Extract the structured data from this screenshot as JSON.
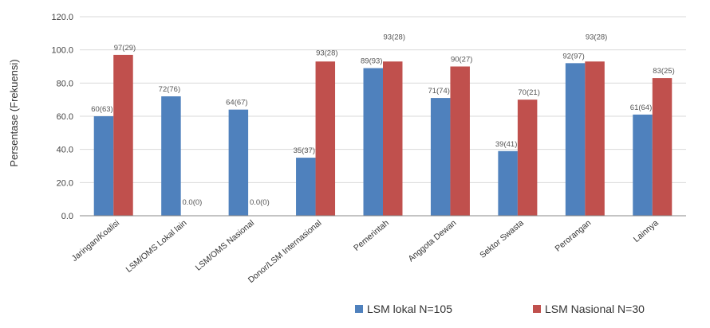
{
  "chart_data": {
    "type": "bar",
    "title": "",
    "xlabel": "",
    "ylabel": "Persentase (Frekuensi)",
    "ylim": [
      0,
      120
    ],
    "yticks": [
      "0.0",
      "20.0",
      "40.0",
      "60.0",
      "80.0",
      "100.0",
      "120.0"
    ],
    "grid": true,
    "legend_position": "bottom-right",
    "categories": [
      "Jaringan/Koalisi",
      "LSM/OMS Lokal lain",
      "LSM/OMS Nasional",
      "Donor/LSM Internasional",
      "Pemerintah",
      "Anggota Dewan",
      "Sektor Swasta",
      "Perorangan",
      "Lainnya"
    ],
    "series": [
      {
        "name": "LSM lokal N=105",
        "color": "#4f81bd",
        "values": [
          60,
          72,
          64,
          35,
          89,
          71,
          39,
          92,
          61
        ],
        "labels": [
          "60(63)",
          "72(76)",
          "64(67)",
          "35(37)",
          "89(93)",
          "71(74)",
          "39(41)",
          "92(97)",
          "61(64)"
        ]
      },
      {
        "name": "LSM Nasional N=30",
        "color": "#c0504d",
        "values": [
          97,
          0,
          0,
          93,
          93,
          90,
          70,
          93,
          83
        ],
        "labels": [
          "97(29)",
          "0.0(0)",
          "0.0(0)",
          "93(28)",
          "93(28)",
          "90(27)",
          "70(21)",
          "93(28)",
          "83(25)"
        ]
      }
    ]
  }
}
